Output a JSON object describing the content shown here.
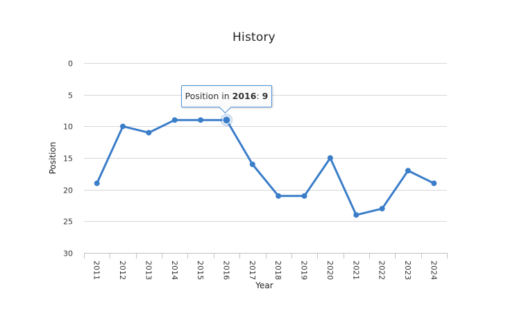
{
  "chart_data": {
    "type": "line",
    "title": "History",
    "xlabel": "Year",
    "ylabel": "Position",
    "categories": [
      "2011",
      "2012",
      "2013",
      "2014",
      "2015",
      "2016",
      "2017",
      "2018",
      "2019",
      "2020",
      "2021",
      "2022",
      "2023",
      "2024"
    ],
    "values": [
      19,
      10,
      11,
      9,
      9,
      9,
      16,
      21,
      21,
      15,
      24,
      23,
      17,
      19
    ],
    "ylim": [
      0,
      30
    ],
    "y_reversed": true,
    "yticks": [
      "0",
      "5",
      "10",
      "15",
      "20",
      "25",
      "30"
    ],
    "grid": true,
    "line_color": "#3a7dc9",
    "tooltip": {
      "prefix": "Position in",
      "year": "2016",
      "separator": ":",
      "value": "9"
    }
  }
}
